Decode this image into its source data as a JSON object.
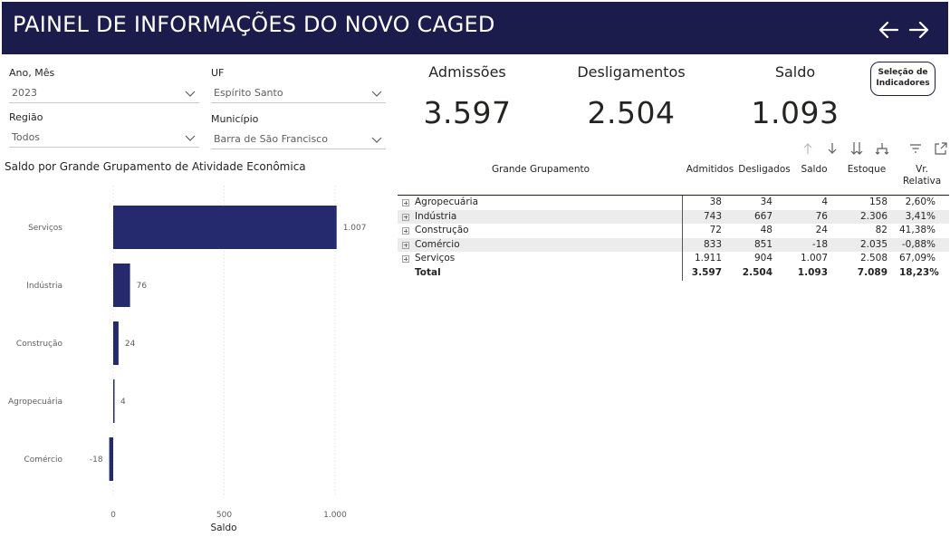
{
  "header": {
    "title": "PAINEL DE INFORMAÇÕES DO NOVO CAGED"
  },
  "filters": {
    "ano_mes": {
      "label": "Ano, Mês",
      "value": "2023"
    },
    "uf": {
      "label": "UF",
      "value": "Espírito Santo"
    },
    "regiao": {
      "label": "Região",
      "value": "Todos"
    },
    "municipio": {
      "label": "Município",
      "value": "Barra de São Francisco"
    }
  },
  "cards": {
    "admissoes": {
      "label": "Admissões",
      "value": "3.597"
    },
    "desligamentos": {
      "label": "Desligamentos",
      "value": "2.504"
    },
    "saldo": {
      "label": "Saldo",
      "value": "1.093"
    }
  },
  "selection_button": {
    "line1": "Seleção de",
    "line2": "Indicadores"
  },
  "chart_data": {
    "type": "bar",
    "orientation": "horizontal",
    "title": "Saldo por Grande Grupamento de Atividade Econômica",
    "xlabel": "Saldo",
    "categories": [
      "Serviços",
      "Indústria",
      "Construção",
      "Agropecuária",
      "Comércio"
    ],
    "values": [
      1007,
      76,
      24,
      4,
      -18
    ],
    "value_labels": [
      "1.007",
      "76",
      "24",
      "4",
      "-18"
    ],
    "xlim": [
      -50,
      1150
    ],
    "xticks": [
      0,
      500,
      1000
    ],
    "xtick_labels": [
      "0",
      "500",
      "1.000"
    ],
    "grid": true,
    "bar_color": "#252a6e"
  },
  "matrix": {
    "headers": {
      "grupo": "Grande Grupamento",
      "admitidos": "Admitidos",
      "desligados": "Desligados",
      "saldo": "Saldo",
      "estoque": "Estoque",
      "vr1": "Vr.",
      "vr2": "Relativa"
    },
    "rows": [
      {
        "name": "Agropecuária",
        "admitidos": "38",
        "desligados": "34",
        "saldo": "4",
        "estoque": "158",
        "vr": "2,60%"
      },
      {
        "name": "Indústria",
        "admitidos": "743",
        "desligados": "667",
        "saldo": "76",
        "estoque": "2.306",
        "vr": "3,41%"
      },
      {
        "name": "Construção",
        "admitidos": "72",
        "desligados": "48",
        "saldo": "24",
        "estoque": "82",
        "vr": "41,38%"
      },
      {
        "name": "Comércio",
        "admitidos": "833",
        "desligados": "851",
        "saldo": "-18",
        "estoque": "2.035",
        "vr": "-0,88%"
      },
      {
        "name": "Serviços",
        "admitidos": "1.911",
        "desligados": "904",
        "saldo": "1.007",
        "estoque": "2.508",
        "vr": "67,09%"
      }
    ],
    "total": {
      "name": "Total",
      "admitidos": "3.597",
      "desligados": "2.504",
      "saldo": "1.093",
      "estoque": "7.089",
      "vr": "18,23%"
    }
  },
  "colors": {
    "header_bg": "#1c1c4c",
    "bar": "#252a6e",
    "alt_row": "#ececec"
  }
}
